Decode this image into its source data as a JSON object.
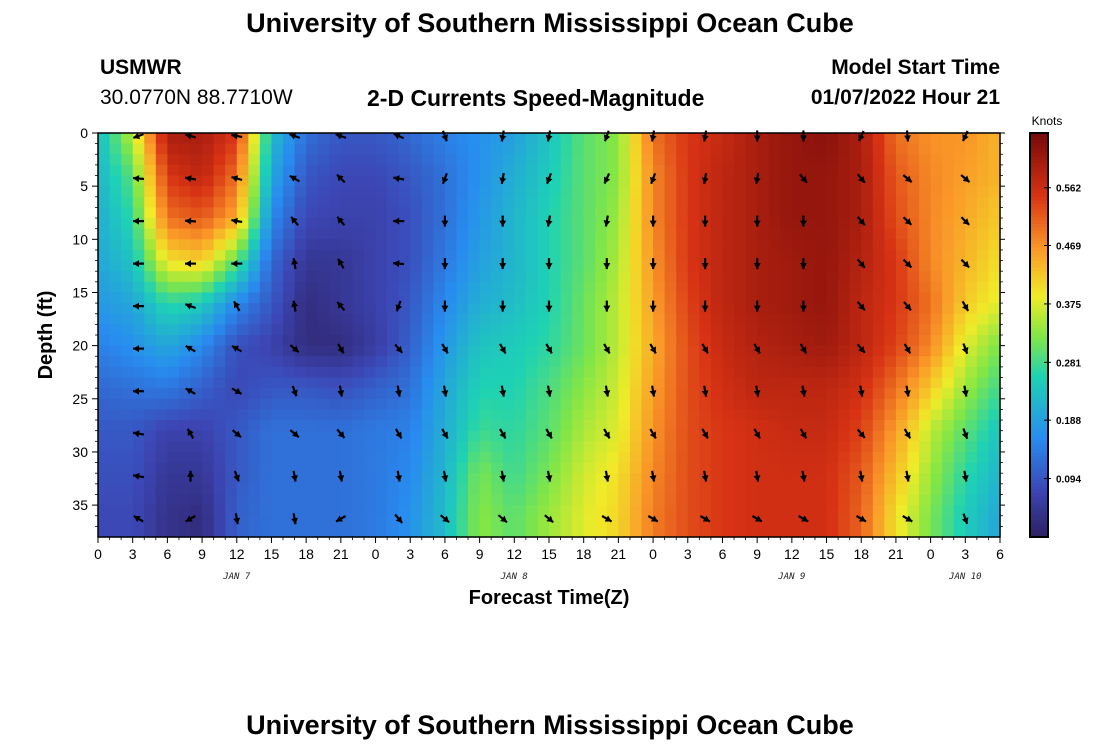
{
  "header": {
    "title": "University of Southern Mississippi Ocean Cube",
    "station": "USMWR",
    "location": "30.0770N  88.7710W",
    "subtitle": "2-D Currents Speed-Magnitude",
    "model_start_label": "Model Start Time",
    "model_start_value": "01/07/2022 Hour 21"
  },
  "footer": {
    "title": "University of Southern Mississippi Ocean Cube"
  },
  "chart_data": {
    "type": "heatmap",
    "xlabel": "Forecast Time(Z)",
    "ylabel": "Depth (ft)",
    "x_tick_labels": [
      "0",
      "3",
      "6",
      "9",
      "12",
      "15",
      "18",
      "21",
      "0",
      "3",
      "6",
      "9",
      "12",
      "15",
      "18",
      "21",
      "0",
      "3",
      "6",
      "9",
      "12",
      "15",
      "18",
      "21",
      "0",
      "3",
      "6"
    ],
    "x_range_hours": [
      0,
      78
    ],
    "day_labels": [
      {
        "label": "JAN 7",
        "hour": 12
      },
      {
        "label": "JAN 8",
        "hour": 36
      },
      {
        "label": "JAN 9",
        "hour": 60
      },
      {
        "label": "JAN 10",
        "hour": 75
      }
    ],
    "y_ticks": [
      0,
      5,
      10,
      15,
      20,
      25,
      30,
      35
    ],
    "y_range_ft": [
      0,
      38
    ],
    "colorbar": {
      "label": "Knots",
      "ticks": [
        "0.094",
        "0.188",
        "0.281",
        "0.375",
        "0.469",
        "0.562"
      ],
      "range": [
        0,
        0.65
      ]
    },
    "depth_rows_ft": [
      0,
      4,
      8,
      12,
      16,
      20,
      24,
      28,
      32,
      36
    ],
    "speed_grid_hour_step": 3,
    "speed_grid": [
      [
        0.23,
        0.36,
        0.6,
        0.6,
        0.55,
        0.23,
        0.13,
        0.1,
        0.1,
        0.12,
        0.15,
        0.17,
        0.19,
        0.24,
        0.3,
        0.33,
        0.5,
        0.55,
        0.57,
        0.6,
        0.62,
        0.63,
        0.6,
        0.5,
        0.47,
        0.47,
        0.44
      ],
      [
        0.22,
        0.3,
        0.55,
        0.58,
        0.5,
        0.2,
        0.1,
        0.08,
        0.08,
        0.1,
        0.13,
        0.17,
        0.21,
        0.25,
        0.3,
        0.33,
        0.48,
        0.55,
        0.58,
        0.6,
        0.62,
        0.62,
        0.6,
        0.52,
        0.48,
        0.46,
        0.44
      ],
      [
        0.21,
        0.27,
        0.5,
        0.52,
        0.45,
        0.16,
        0.08,
        0.07,
        0.07,
        0.09,
        0.13,
        0.18,
        0.22,
        0.26,
        0.3,
        0.34,
        0.48,
        0.55,
        0.58,
        0.6,
        0.62,
        0.62,
        0.6,
        0.53,
        0.48,
        0.45,
        0.42
      ],
      [
        0.2,
        0.24,
        0.4,
        0.42,
        0.3,
        0.12,
        0.05,
        0.05,
        0.07,
        0.09,
        0.14,
        0.19,
        0.22,
        0.26,
        0.3,
        0.35,
        0.47,
        0.55,
        0.58,
        0.6,
        0.61,
        0.62,
        0.59,
        0.55,
        0.48,
        0.44,
        0.4
      ],
      [
        0.18,
        0.2,
        0.27,
        0.25,
        0.16,
        0.1,
        0.03,
        0.05,
        0.07,
        0.1,
        0.16,
        0.21,
        0.23,
        0.26,
        0.31,
        0.36,
        0.46,
        0.54,
        0.58,
        0.6,
        0.61,
        0.62,
        0.58,
        0.55,
        0.5,
        0.42,
        0.38
      ],
      [
        0.15,
        0.17,
        0.2,
        0.16,
        0.09,
        0.07,
        0.03,
        0.03,
        0.06,
        0.11,
        0.18,
        0.24,
        0.25,
        0.27,
        0.31,
        0.36,
        0.45,
        0.53,
        0.57,
        0.59,
        0.6,
        0.61,
        0.58,
        0.54,
        0.48,
        0.38,
        0.32
      ],
      [
        0.12,
        0.13,
        0.14,
        0.11,
        0.08,
        0.1,
        0.1,
        0.09,
        0.11,
        0.13,
        0.2,
        0.26,
        0.26,
        0.29,
        0.33,
        0.37,
        0.46,
        0.53,
        0.56,
        0.58,
        0.58,
        0.58,
        0.56,
        0.5,
        0.42,
        0.34,
        0.28
      ],
      [
        0.1,
        0.1,
        0.07,
        0.07,
        0.1,
        0.13,
        0.13,
        0.13,
        0.14,
        0.15,
        0.21,
        0.28,
        0.27,
        0.3,
        0.35,
        0.38,
        0.47,
        0.53,
        0.55,
        0.56,
        0.57,
        0.57,
        0.54,
        0.46,
        0.36,
        0.3,
        0.24
      ],
      [
        0.09,
        0.09,
        0.05,
        0.05,
        0.1,
        0.13,
        0.13,
        0.13,
        0.14,
        0.16,
        0.22,
        0.32,
        0.28,
        0.32,
        0.37,
        0.4,
        0.48,
        0.53,
        0.55,
        0.56,
        0.56,
        0.56,
        0.52,
        0.43,
        0.34,
        0.27,
        0.22
      ],
      [
        0.08,
        0.08,
        0.04,
        0.03,
        0.11,
        0.13,
        0.13,
        0.13,
        0.14,
        0.17,
        0.23,
        0.33,
        0.3,
        0.34,
        0.38,
        0.41,
        0.49,
        0.53,
        0.55,
        0.56,
        0.56,
        0.56,
        0.51,
        0.4,
        0.32,
        0.25,
        0.2
      ]
    ],
    "vector_rows_ft": [
      0,
      4,
      8,
      12,
      16,
      20,
      24,
      28,
      32,
      36
    ],
    "vector_hours": [
      3.5,
      8,
      12,
      17,
      21,
      26,
      30,
      35,
      39,
      44,
      48,
      52.5,
      57,
      61,
      66,
      70,
      75
    ],
    "vector_direction_deg": [
      [
        250,
        285,
        280,
        290,
        290,
        295,
        160,
        190,
        190,
        200,
        190,
        190,
        180,
        180,
        205,
        175,
        205
      ],
      [
        275,
        280,
        285,
        300,
        315,
        280,
        200,
        190,
        200,
        205,
        200,
        190,
        190,
        140,
        140,
        130,
        130
      ],
      [
        270,
        275,
        280,
        320,
        320,
        270,
        180,
        180,
        190,
        190,
        180,
        180,
        180,
        180,
        140,
        135,
        135
      ],
      [
        270,
        270,
        270,
        350,
        330,
        275,
        180,
        180,
        180,
        180,
        180,
        180,
        180,
        180,
        140,
        135,
        135
      ],
      [
        270,
        290,
        330,
        350,
        320,
        200,
        180,
        180,
        180,
        180,
        180,
        180,
        180,
        180,
        140,
        140,
        150
      ],
      [
        270,
        300,
        300,
        130,
        150,
        140,
        150,
        150,
        150,
        150,
        150,
        150,
        150,
        150,
        140,
        150,
        160
      ],
      [
        270,
        300,
        120,
        160,
        170,
        170,
        170,
        170,
        170,
        170,
        170,
        170,
        170,
        170,
        170,
        170,
        170
      ],
      [
        280,
        330,
        130,
        130,
        140,
        150,
        150,
        150,
        150,
        150,
        150,
        150,
        150,
        150,
        140,
        150,
        160
      ],
      [
        280,
        0,
        160,
        170,
        170,
        170,
        170,
        170,
        170,
        170,
        170,
        170,
        170,
        170,
        170,
        170,
        170
      ],
      [
        300,
        240,
        170,
        170,
        240,
        140,
        130,
        130,
        130,
        120,
        120,
        120,
        120,
        120,
        120,
        120,
        160
      ]
    ]
  }
}
